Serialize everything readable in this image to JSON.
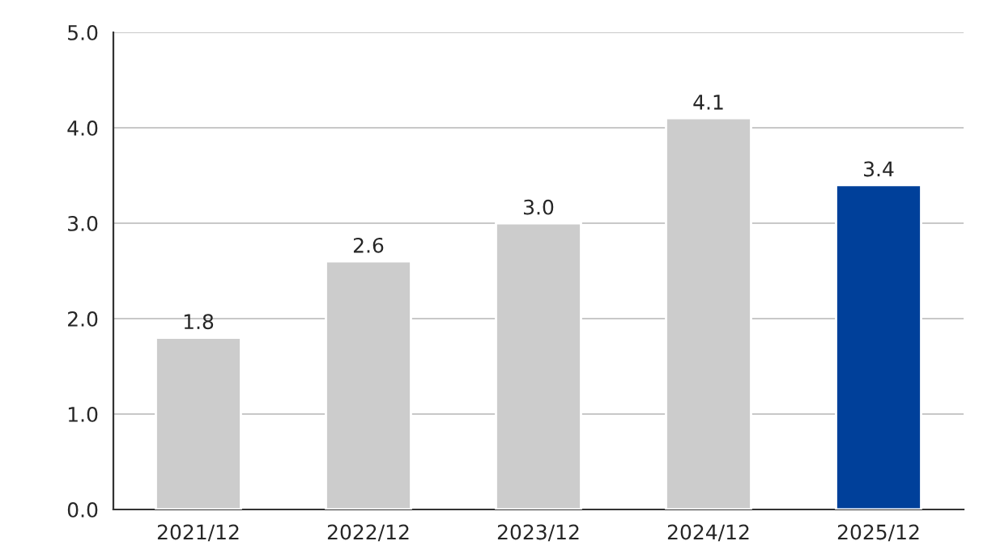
{
  "chart_data": {
    "type": "bar",
    "categories": [
      "2021/12",
      "2022/12",
      "2023/12",
      "2024/12",
      "2025/12"
    ],
    "values": [
      1.8,
      2.6,
      3.0,
      4.1,
      3.4
    ],
    "colors": [
      "#cccccc",
      "#cccccc",
      "#cccccc",
      "#cccccc",
      "#00409a"
    ],
    "value_labels": [
      "1.8",
      "2.6",
      "3.0",
      "4.1",
      "3.4"
    ],
    "ylim": [
      0,
      5
    ],
    "yticks": [
      {
        "value": 0,
        "label": "0.0"
      },
      {
        "value": 1,
        "label": "1.0"
      },
      {
        "value": 2,
        "label": "2.0"
      },
      {
        "value": 3,
        "label": "3.0"
      },
      {
        "value": 4,
        "label": "4.0"
      },
      {
        "value": 5,
        "label": "5.0"
      }
    ],
    "grid": "y",
    "legend": false
  }
}
